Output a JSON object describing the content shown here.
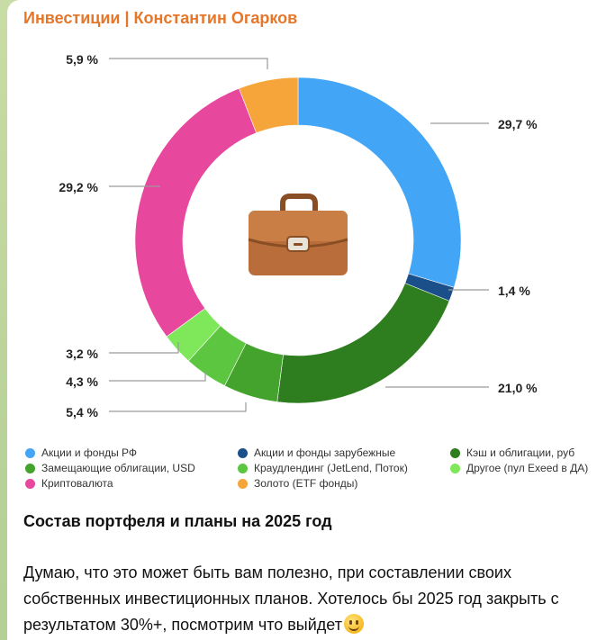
{
  "channel": {
    "name": "Инвестиции | Константин Огарков"
  },
  "chart_data": {
    "type": "pie",
    "donut": true,
    "center_icon": "briefcase-icon",
    "slices": [
      {
        "label": "Акции и фонды РФ",
        "value": 29.7,
        "value_label": "29,7 %",
        "color": "#42a5f5"
      },
      {
        "label": "Акции и фонды зарубежные",
        "value": 1.4,
        "value_label": "1,4 %",
        "color": "#1b4f8a"
      },
      {
        "label": "Кэш и облигации, руб",
        "value": 21.0,
        "value_label": "21,0 %",
        "color": "#2e7d1f"
      },
      {
        "label": "Замещающие облигации, USD",
        "value": 5.4,
        "value_label": "5,4 %",
        "color": "#43a32c"
      },
      {
        "label": "Краудлендинг (JetLend, Поток)",
        "value": 4.3,
        "value_label": "4,3 %",
        "color": "#5cc640"
      },
      {
        "label": "Другое (пул Exeed в ДА)",
        "value": 3.2,
        "value_label": "3,2 %",
        "color": "#7ee85a"
      },
      {
        "label": "Криптовалюта",
        "value": 29.2,
        "value_label": "29,2 %",
        "color": "#e8479e"
      },
      {
        "label": "Золото (ETF фонды)",
        "value": 5.9,
        "value_label": "5,9 %",
        "color": "#f5a53a"
      }
    ]
  },
  "legend": {
    "items": [
      {
        "label": "Акции и фонды РФ",
        "color": "#42a5f5"
      },
      {
        "label": "Акции и фонды зарубежные",
        "color": "#1b4f8a"
      },
      {
        "label": "Кэш и облигации, руб",
        "color": "#2e7d1f"
      },
      {
        "label": "Замещающие облигации, USD",
        "color": "#43a32c"
      },
      {
        "label": "Краудлендинг (JetLend, Поток)",
        "color": "#5cc640"
      },
      {
        "label": "Другое (пул Exeed в ДА)",
        "color": "#7ee85a"
      },
      {
        "label": "Криптовалюта",
        "color": "#e8479e"
      },
      {
        "label": "Золото (ETF фонды)",
        "color": "#f5a53a"
      }
    ]
  },
  "post": {
    "title": "Состав портфеля и планы на 2025 год",
    "text": "Думаю, что это может быть вам полезно, при составлении своих собственных инвестиционных планов. Хотелось бы 2025 год закрыть с результатом 30%+, посмотрим что выйдет",
    "emoji": "smiling-face-emoji"
  }
}
